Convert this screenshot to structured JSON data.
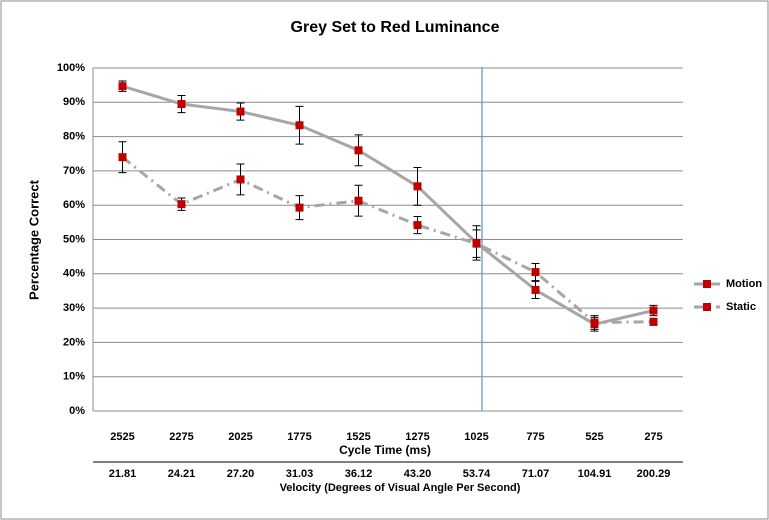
{
  "chart_data": {
    "type": "line",
    "title": "Grey Set to Red Luminance",
    "ylabel": "Percentage Correct",
    "xlabel": "Cycle Time (ms)",
    "xlabel2": "Velocity (Degrees of Visual Angle Per Second)",
    "categories": [
      "2525",
      "2275",
      "2025",
      "1775",
      "1525",
      "1275",
      "1025",
      "775",
      "525",
      "275"
    ],
    "categories2": [
      "21.81",
      "24.21",
      "27.20",
      "31.03",
      "36.12",
      "43.20",
      "53.74",
      "71.07",
      "104.91",
      "200.29"
    ],
    "series": [
      {
        "name": "Motion",
        "color": "#a6a6a6",
        "marker_color": "#c00000",
        "dash": "solid",
        "values": [
          94.7,
          89.5,
          87.3,
          83.3,
          76,
          65.5,
          49,
          35.3,
          25.3,
          29.3
        ],
        "errors": [
          1.5,
          2.5,
          2.5,
          5.5,
          4.5,
          5.5,
          5,
          2.5,
          2,
          1.5
        ]
      },
      {
        "name": "Static",
        "color": "#a6a6a6",
        "marker_color": "#c00000",
        "dash": "dashdot",
        "values": [
          74,
          60.3,
          67.5,
          59.3,
          61.3,
          54.2,
          48.8,
          40.5,
          25.8,
          26
        ],
        "errors": [
          4.5,
          1.8,
          4.5,
          3.5,
          4.5,
          2.5,
          4,
          2.5,
          2,
          1
        ]
      }
    ],
    "ylim": [
      0,
      100
    ],
    "yticks": [
      {
        "value": 0,
        "label": "0%"
      },
      {
        "value": 10,
        "label": "10%"
      },
      {
        "value": 20,
        "label": "20%"
      },
      {
        "value": 30,
        "label": "30%"
      },
      {
        "value": 40,
        "label": "40%"
      },
      {
        "value": 50,
        "label": "50%"
      },
      {
        "value": 60,
        "label": "60%"
      },
      {
        "value": 70,
        "label": "70%"
      },
      {
        "value": 80,
        "label": "80%"
      },
      {
        "value": 90,
        "label": "90%"
      },
      {
        "value": 100,
        "label": "100%"
      }
    ],
    "grid": true,
    "legend": "right"
  }
}
